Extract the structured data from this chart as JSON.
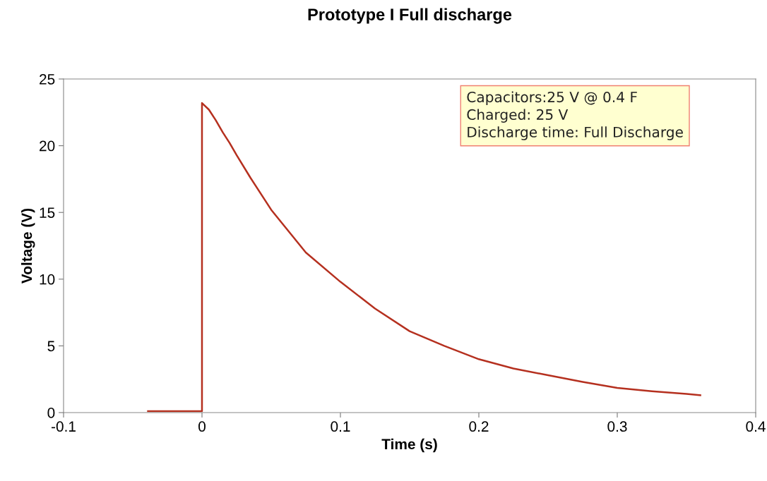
{
  "chart_data": {
    "type": "line",
    "title": "Prototype I Full discharge",
    "xlabel": "Time (s)",
    "ylabel": "Voltage (V)",
    "annotations": [
      "Capacitors:25 V @ 0.4 F\nCharged: 25 V\nDischarge time: Full Discharge"
    ],
    "series": [
      {
        "color": "#b5301f",
        "x": [
          -0.039,
          -0.02,
          0.0,
          0.0,
          0.005,
          0.01,
          0.015,
          0.02,
          0.025,
          0.035,
          0.05,
          0.075,
          0.1,
          0.125,
          0.15,
          0.175,
          0.2,
          0.225,
          0.25,
          0.275,
          0.3,
          0.325,
          0.35,
          0.36
        ],
        "values": [
          0.1,
          0.1,
          0.1,
          23.2,
          22.7,
          21.9,
          21.0,
          20.2,
          19.3,
          17.6,
          15.2,
          12.0,
          9.8,
          7.8,
          6.1,
          5.0,
          4.0,
          3.3,
          2.8,
          2.3,
          1.85,
          1.6,
          1.4,
          1.3
        ]
      }
    ],
    "xlim": [
      -0.1,
      0.4
    ],
    "xticks": [
      -0.1,
      0,
      0.1,
      0.2,
      0.3,
      0.4
    ],
    "ylim": [
      0,
      25
    ],
    "yticks": [
      0,
      5,
      10,
      15,
      20,
      25
    ],
    "grid": false,
    "line_style": "solid",
    "marker": "none"
  }
}
